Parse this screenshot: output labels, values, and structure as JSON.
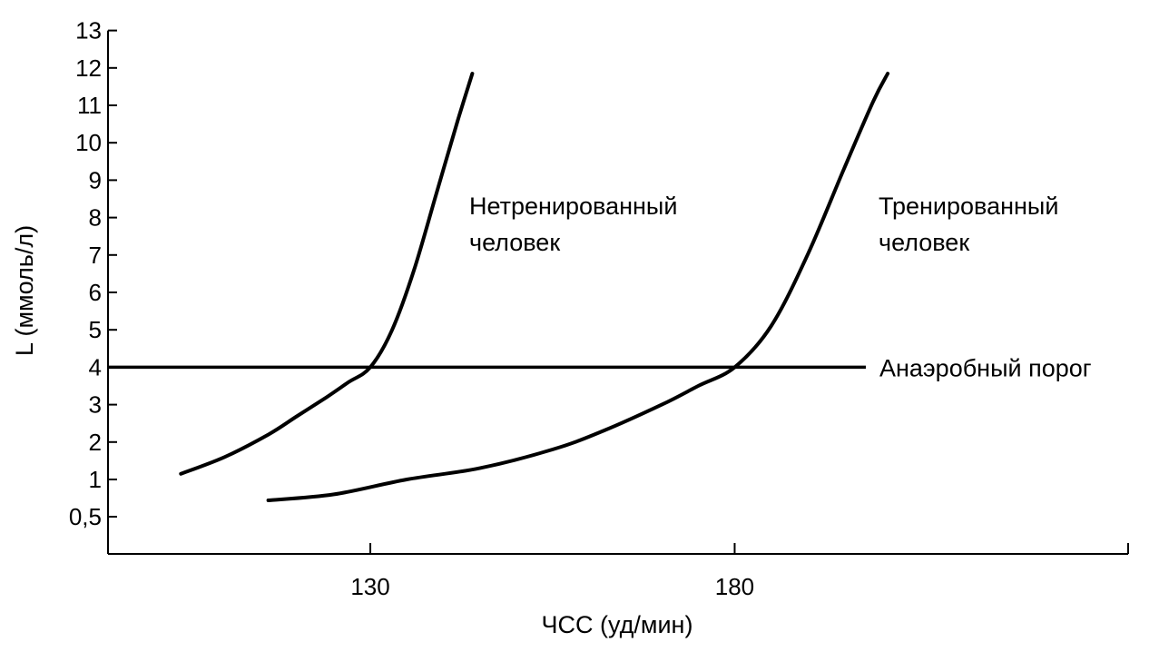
{
  "chart_data": {
    "type": "line",
    "title": "",
    "xlabel": "ЧСС (уд/мин)",
    "ylabel": "L (ммоль/л)",
    "x_ticks": [
      130,
      180
    ],
    "y_ticks": [
      {
        "value": 0.5,
        "label": "0,5"
      },
      {
        "value": 1,
        "label": "1"
      },
      {
        "value": 2,
        "label": "2"
      },
      {
        "value": 3,
        "label": "3"
      },
      {
        "value": 4,
        "label": "4"
      },
      {
        "value": 5,
        "label": "5"
      },
      {
        "value": 6,
        "label": "6"
      },
      {
        "value": 7,
        "label": "7"
      },
      {
        "value": 8,
        "label": "8"
      },
      {
        "value": 9,
        "label": "9"
      },
      {
        "value": 10,
        "label": "10"
      },
      {
        "value": 11,
        "label": "11"
      },
      {
        "value": 12,
        "label": "12"
      },
      {
        "value": 13,
        "label": "13"
      }
    ],
    "xlim": [
      94,
      234
    ],
    "grid": false,
    "legend": "none",
    "series": [
      {
        "name": "Нетренированный человек",
        "label_lines": [
          "Нетренированный",
          "человек"
        ],
        "points": [
          [
            104,
            1.15
          ],
          [
            110,
            1.6
          ],
          [
            116,
            2.2
          ],
          [
            120,
            2.7
          ],
          [
            124,
            3.2
          ],
          [
            127,
            3.6
          ],
          [
            130,
            4.0
          ],
          [
            133,
            5.0
          ],
          [
            136,
            6.6
          ],
          [
            139,
            8.6
          ],
          [
            142,
            10.6
          ],
          [
            144,
            11.85
          ]
        ]
      },
      {
        "name": "Тренированный человек",
        "label_lines": [
          "Тренированный",
          "человек"
        ],
        "points": [
          [
            116,
            0.72
          ],
          [
            125,
            0.8
          ],
          [
            135,
            1.0
          ],
          [
            145,
            1.3
          ],
          [
            155,
            1.8
          ],
          [
            162,
            2.3
          ],
          [
            170,
            3.0
          ],
          [
            175,
            3.5
          ],
          [
            180,
            4.0
          ],
          [
            185,
            5.1
          ],
          [
            190,
            7.0
          ],
          [
            195,
            9.3
          ],
          [
            199,
            11.1
          ],
          [
            201,
            11.85
          ]
        ]
      }
    ],
    "reference_line": {
      "y": 4,
      "x_range": [
        94,
        198
      ],
      "label": "Анаэробный порог"
    }
  }
}
